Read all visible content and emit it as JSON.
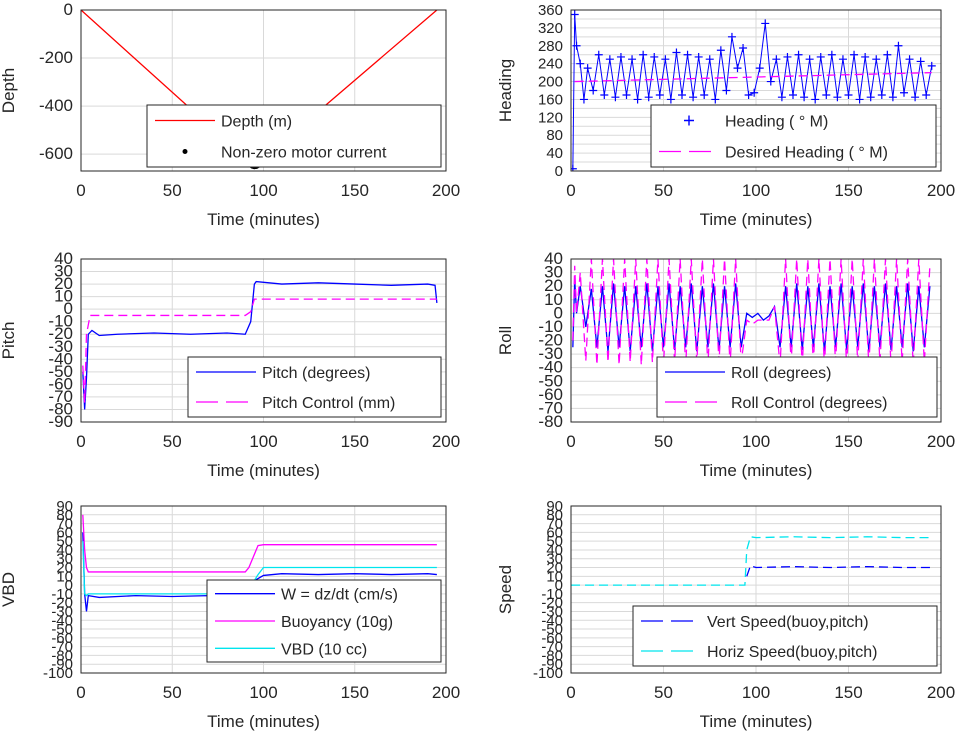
{
  "figure": {
    "background": "#ffffff",
    "grid_color": "#d9d9d9",
    "axis_color": "#262626"
  },
  "chart_data": [
    {
      "type": "line",
      "ylabel": "Depth",
      "xlabel": "Time (minutes)",
      "xlim": [
        0,
        200
      ],
      "ylim": [
        -670,
        0
      ],
      "grid": true,
      "xticks": [
        0,
        50,
        100,
        150,
        200
      ],
      "yticks": [
        0,
        -200,
        -400,
        -600
      ],
      "legend": {
        "placement": "lower-right"
      },
      "series": [
        {
          "name": "Depth (m)",
          "style": "solid",
          "color": "#ff0000",
          "x": [
            0,
            95,
            195
          ],
          "y": [
            0,
            -650,
            0
          ]
        },
        {
          "name": "Non-zero motor current",
          "style": "dots",
          "color": "#000000",
          "x": [
            92,
            93,
            94,
            95,
            96,
            97,
            98
          ],
          "y": [
            -636,
            -643,
            -648,
            -650,
            -649,
            -645,
            -638
          ]
        }
      ]
    },
    {
      "type": "line",
      "ylabel": "Heading",
      "xlabel": "Time (minutes)",
      "xlim": [
        0,
        200
      ],
      "ylim": [
        0,
        360
      ],
      "grid": true,
      "xticks": [
        0,
        50,
        100,
        150,
        200
      ],
      "yticks": [
        0,
        20,
        40,
        60,
        80,
        100,
        120,
        140,
        160,
        180,
        200,
        220,
        240,
        260,
        280,
        300,
        320,
        340,
        360
      ],
      "yticklabels": [
        "0",
        "",
        "40",
        "",
        "80",
        "",
        "120",
        "",
        "160",
        "",
        "200",
        "",
        "240",
        "",
        "280",
        "",
        "320",
        "",
        "360"
      ],
      "legend": {
        "placement": "lower-right"
      },
      "series": [
        {
          "name": "Heading (  ° M)",
          "style": "plus",
          "color": "#0000ff",
          "x": [
            1,
            2,
            3,
            5,
            7,
            9,
            12,
            15,
            18,
            21,
            24,
            27,
            30,
            33,
            36,
            39,
            42,
            45,
            48,
            51,
            54,
            57,
            60,
            63,
            66,
            69,
            72,
            75,
            78,
            81,
            84,
            87,
            90,
            93,
            96,
            99,
            102,
            105,
            108,
            111,
            114,
            117,
            120,
            123,
            126,
            129,
            132,
            135,
            138,
            141,
            144,
            147,
            150,
            153,
            156,
            159,
            162,
            165,
            168,
            171,
            174,
            177,
            180,
            183,
            186,
            189,
            192,
            195
          ],
          "y": [
            5,
            350,
            280,
            240,
            160,
            230,
            180,
            260,
            170,
            250,
            165,
            255,
            170,
            250,
            160,
            260,
            165,
            255,
            170,
            250,
            160,
            265,
            170,
            260,
            165,
            255,
            170,
            250,
            160,
            270,
            180,
            300,
            230,
            275,
            170,
            175,
            230,
            330,
            200,
            250,
            165,
            255,
            170,
            260,
            165,
            250,
            160,
            255,
            170,
            260,
            165,
            250,
            170,
            260,
            160,
            255,
            165,
            250,
            170,
            260,
            165,
            280,
            175,
            250,
            165,
            245,
            170,
            235
          ]
        },
        {
          "name": "Desired Heading (    ° M)",
          "style": "dash",
          "color": "#ff00ff",
          "x": [
            2,
            195
          ],
          "y": [
            200,
            220
          ]
        }
      ]
    },
    {
      "type": "line",
      "ylabel": "Pitch",
      "xlabel": "Time (minutes)",
      "xlim": [
        0,
        200
      ],
      "ylim": [
        -90,
        40
      ],
      "grid": true,
      "xticks": [
        0,
        50,
        100,
        150,
        200
      ],
      "yticks": [
        40,
        30,
        20,
        10,
        0,
        -10,
        -20,
        -30,
        -40,
        -50,
        -60,
        -70,
        -80,
        -90
      ],
      "legend": {
        "placement": "lower-right"
      },
      "series": [
        {
          "name": "Pitch (degrees)",
          "style": "solid",
          "color": "#0000ff",
          "x": [
            1,
            2,
            3,
            4,
            6,
            10,
            20,
            40,
            60,
            80,
            90,
            93,
            95,
            96,
            110,
            130,
            150,
            170,
            190,
            194,
            195
          ],
          "y": [
            -50,
            -80,
            -55,
            -20,
            -17,
            -21,
            -20,
            -19,
            -20,
            -19,
            -20,
            -10,
            20,
            22,
            20,
            21,
            20,
            19,
            20,
            19,
            5
          ]
        },
        {
          "name": "Pitch Control (mm)",
          "style": "dash",
          "color": "#ff00ff",
          "x": [
            1,
            2,
            3,
            5,
            90,
            93,
            95,
            195
          ],
          "y": [
            -45,
            -75,
            -20,
            -5,
            -5,
            -2,
            8,
            8
          ]
        }
      ]
    },
    {
      "type": "line",
      "ylabel": "Roll",
      "xlabel": "Time (minutes)",
      "xlim": [
        0,
        200
      ],
      "ylim": [
        -80,
        40
      ],
      "grid": true,
      "xticks": [
        0,
        50,
        100,
        150,
        200
      ],
      "yticks": [
        40,
        30,
        20,
        10,
        0,
        -10,
        -20,
        -30,
        -40,
        -50,
        -60,
        -70,
        -80
      ],
      "legend": {
        "placement": "lower-right"
      },
      "series": [
        {
          "name": "Roll (degrees)",
          "style": "solid",
          "color": "#0000ff",
          "x": [
            1,
            2,
            3,
            5,
            8,
            11,
            14,
            17,
            20,
            23,
            26,
            29,
            32,
            35,
            38,
            41,
            44,
            47,
            50,
            53,
            56,
            59,
            62,
            65,
            68,
            71,
            74,
            77,
            80,
            83,
            86,
            89,
            92,
            95,
            98,
            101,
            104,
            107,
            110,
            113,
            116,
            119,
            122,
            125,
            128,
            131,
            134,
            137,
            140,
            143,
            146,
            149,
            152,
            155,
            158,
            161,
            164,
            167,
            170,
            173,
            176,
            179,
            182,
            185,
            188,
            191,
            194
          ],
          "y": [
            -25,
            25,
            0,
            20,
            -10,
            18,
            -25,
            20,
            -28,
            22,
            -25,
            20,
            -28,
            20,
            -25,
            22,
            -28,
            20,
            -25,
            22,
            -27,
            20,
            -25,
            22,
            -28,
            20,
            -25,
            22,
            -27,
            20,
            -25,
            22,
            -25,
            0,
            -3,
            0,
            -5,
            -2,
            5,
            -25,
            20,
            -25,
            22,
            -27,
            20,
            -25,
            22,
            -28,
            20,
            -25,
            22,
            -27,
            20,
            -25,
            22,
            -28,
            20,
            -25,
            22,
            -27,
            20,
            -25,
            22,
            -28,
            20,
            -25,
            20
          ]
        },
        {
          "name": "Roll Control (degrees)",
          "style": "dash",
          "color": "#ff00ff",
          "x": [
            1,
            2,
            3,
            5,
            8,
            11,
            14,
            17,
            20,
            23,
            26,
            29,
            32,
            35,
            38,
            41,
            44,
            47,
            50,
            53,
            56,
            59,
            62,
            65,
            68,
            71,
            74,
            77,
            80,
            83,
            86,
            89,
            92,
            95,
            98,
            101,
            104,
            107,
            110,
            113,
            116,
            119,
            122,
            125,
            128,
            131,
            134,
            137,
            140,
            143,
            146,
            149,
            152,
            155,
            158,
            161,
            164,
            167,
            170,
            173,
            176,
            179,
            182,
            185,
            188,
            191,
            194
          ],
          "y": [
            -20,
            35,
            0,
            30,
            -35,
            40,
            -38,
            40,
            -36,
            40,
            -38,
            40,
            -36,
            40,
            -38,
            40,
            -36,
            40,
            -38,
            40,
            -36,
            40,
            -38,
            40,
            -36,
            40,
            -38,
            40,
            -36,
            40,
            -38,
            40,
            -36,
            -5,
            -8,
            -5,
            -5,
            -5,
            5,
            -38,
            40,
            -36,
            40,
            -38,
            40,
            -36,
            40,
            -38,
            40,
            -36,
            40,
            -38,
            40,
            -36,
            40,
            -38,
            40,
            -36,
            40,
            -38,
            40,
            -36,
            40,
            -38,
            40,
            -36,
            35
          ]
        }
      ]
    },
    {
      "type": "line",
      "ylabel": "VBD",
      "xlabel": "Time (minutes)",
      "xlim": [
        0,
        200
      ],
      "ylim": [
        -100,
        90
      ],
      "grid": true,
      "xticks": [
        0,
        50,
        100,
        150,
        200
      ],
      "yticks": [
        90,
        80,
        70,
        60,
        50,
        40,
        30,
        20,
        10,
        0,
        -10,
        -20,
        -30,
        -40,
        -50,
        -60,
        -70,
        -80,
        -90,
        -100
      ],
      "yticklabels": [
        "90",
        "80",
        "70",
        "60",
        "50",
        "40",
        "30",
        "20",
        "10",
        "0",
        "-10",
        "-20",
        "-30",
        "-40",
        "-50",
        "-60",
        "-70",
        "-80",
        "-90",
        "-100"
      ],
      "legend": {
        "placement": "lower-right"
      },
      "series": [
        {
          "name": "W = dz/dt (cm/s)",
          "style": "solid",
          "color": "#0000ff",
          "x": [
            1,
            2,
            3,
            4,
            10,
            30,
            50,
            70,
            90,
            92,
            95,
            100,
            110,
            130,
            150,
            170,
            190,
            195
          ],
          "y": [
            60,
            -10,
            -30,
            -12,
            -14,
            -12,
            -13,
            -12,
            -13,
            -10,
            5,
            11,
            13,
            12,
            13,
            12,
            13,
            12
          ]
        },
        {
          "name": "Buoyancy (10g)",
          "style": "solid",
          "color": "#ff00ff",
          "x": [
            1,
            2,
            3,
            4,
            90,
            92,
            97,
            100,
            195
          ],
          "y": [
            80,
            40,
            20,
            15,
            15,
            20,
            45,
            46,
            46
          ]
        },
        {
          "name": "VBD (10 cc)",
          "style": "solid",
          "color": "#00e5ee",
          "x": [
            1,
            2,
            3,
            4,
            90,
            92,
            97,
            100,
            195
          ],
          "y": [
            50,
            -10,
            -12,
            -10,
            -10,
            -5,
            12,
            20,
            20
          ]
        }
      ]
    },
    {
      "type": "line",
      "ylabel": "Speed",
      "xlabel": "Time (minutes)",
      "xlim": [
        0,
        200
      ],
      "ylim": [
        -100,
        90
      ],
      "grid": true,
      "xticks": [
        0,
        50,
        100,
        150,
        200
      ],
      "yticks": [
        90,
        80,
        70,
        60,
        50,
        40,
        30,
        20,
        10,
        0,
        -10,
        -20,
        -30,
        -40,
        -50,
        -60,
        -70,
        -80,
        -90,
        -100
      ],
      "yticklabels": [
        "90",
        "80",
        "70",
        "60",
        "50",
        "40",
        "30",
        "20",
        "10",
        "0",
        "-10",
        "-20",
        "-30",
        "-40",
        "-50",
        "-60",
        "-70",
        "-80",
        "-90",
        "-100"
      ],
      "legend": {
        "placement": "lower-right"
      },
      "series": [
        {
          "name": "Vert Speed(buoy,pitch)",
          "style": "dash",
          "color": "#0000ff",
          "x": [
            95,
            97,
            100,
            120,
            140,
            160,
            180,
            195
          ],
          "y": [
            10,
            22,
            20,
            21,
            20,
            21,
            20,
            20
          ]
        },
        {
          "name": "Horiz Speed(buoy,pitch)",
          "style": "dash",
          "color": "#00e5ee",
          "x": [
            0,
            94,
            95,
            97,
            100,
            120,
            140,
            160,
            180,
            195
          ],
          "y": [
            0,
            0,
            40,
            55,
            54,
            55,
            54,
            55,
            54,
            54
          ]
        }
      ]
    }
  ]
}
